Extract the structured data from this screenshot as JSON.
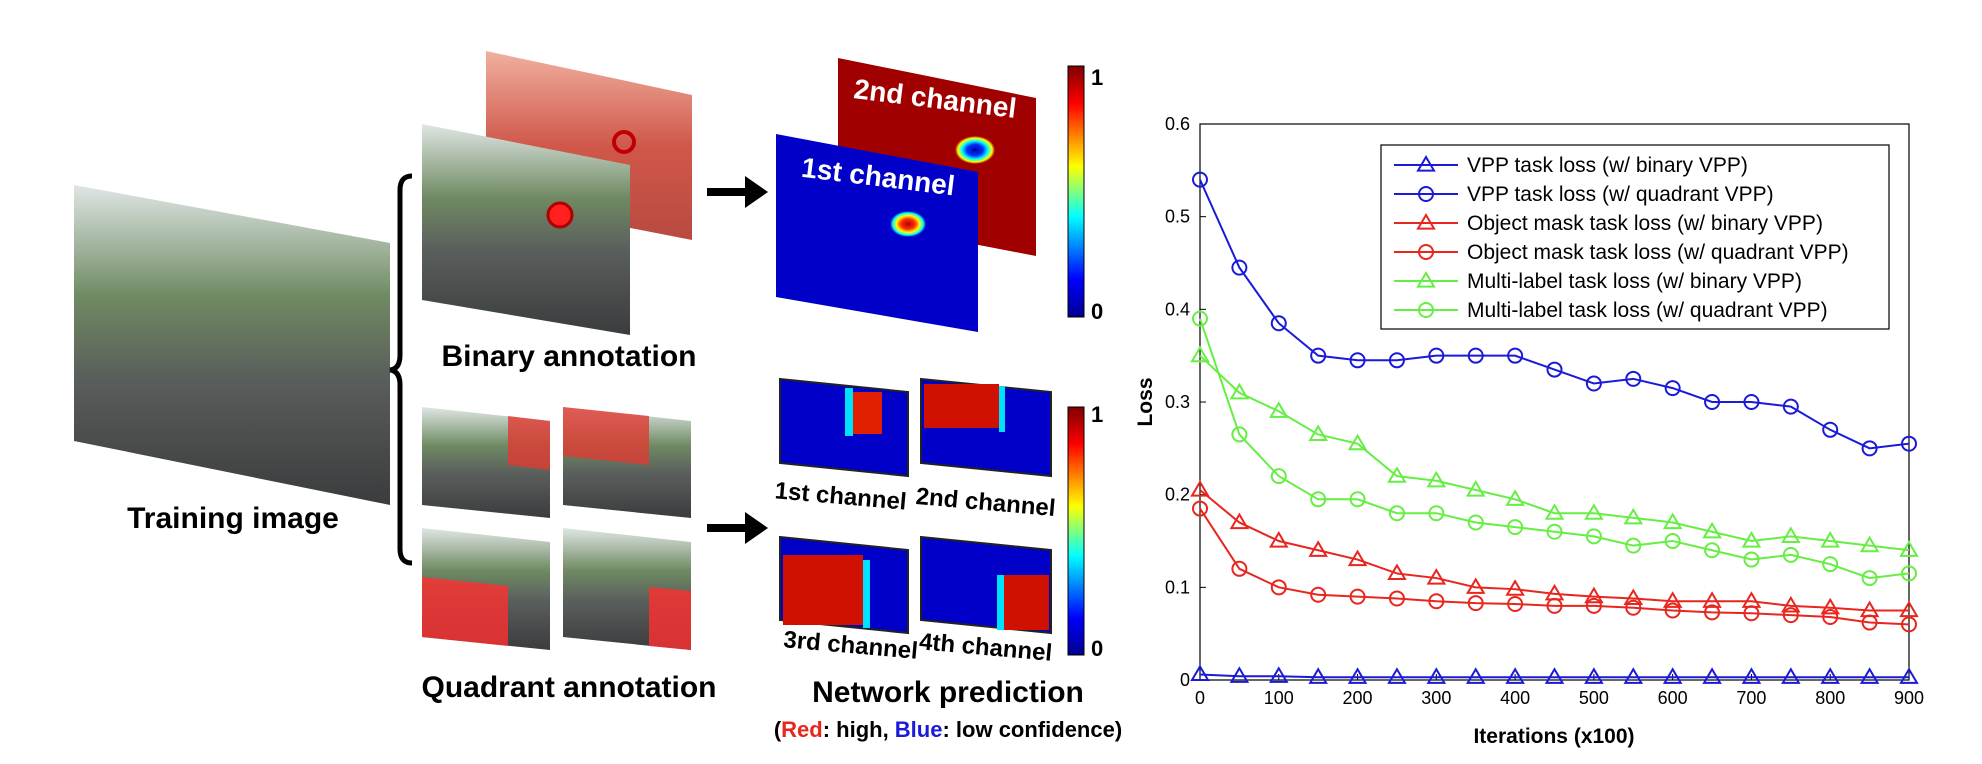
{
  "diagram": {
    "training_label": "Training image",
    "binary_label": "Binary annotation",
    "quadrant_label": "Quadrant annotation",
    "prediction_label": "Network prediction",
    "legend_note": [
      "(",
      "Red",
      ": high, ",
      "Blue",
      ": low confidence)"
    ],
    "binary_channels": [
      "1st channel",
      "2nd channel"
    ],
    "quadrant_channels": [
      "1st channel",
      "2nd channel",
      "3rd channel",
      "4th channel"
    ],
    "colorbar_ticks": [
      0,
      1
    ]
  },
  "chart_data": {
    "type": "line",
    "xlabel": "Iterations (x100)",
    "ylabel": "Loss",
    "x": [
      0,
      50,
      100,
      150,
      200,
      250,
      300,
      350,
      400,
      450,
      500,
      550,
      600,
      650,
      700,
      750,
      800,
      850,
      900
    ],
    "xlim": [
      0,
      900
    ],
    "ylim": [
      0,
      0.6
    ],
    "xticks": [
      0,
      100,
      200,
      300,
      400,
      500,
      600,
      700,
      800,
      900
    ],
    "yticks": [
      0,
      0.1,
      0.2,
      0.3,
      0.4,
      0.5,
      0.6
    ],
    "grid": false,
    "legend": "upper right",
    "series": [
      {
        "name": "VPP task loss (w/ binary VPP)",
        "color": "#1a1ad8",
        "marker": "triangle",
        "values": [
          0.006,
          0.004,
          0.004,
          0.003,
          0.003,
          0.003,
          0.003,
          0.003,
          0.003,
          0.003,
          0.003,
          0.003,
          0.003,
          0.003,
          0.003,
          0.003,
          0.003,
          0.003,
          0.003
        ]
      },
      {
        "name": "VPP task loss (w/ quadrant VPP)",
        "color": "#1a1ad8",
        "marker": "circle",
        "values": [
          0.54,
          0.445,
          0.385,
          0.35,
          0.345,
          0.345,
          0.35,
          0.35,
          0.35,
          0.335,
          0.32,
          0.325,
          0.315,
          0.3,
          0.3,
          0.295,
          0.27,
          0.25,
          0.255
        ]
      },
      {
        "name": "Object mask task loss (w/ binary VPP)",
        "color": "#e8261e",
        "marker": "triangle",
        "values": [
          0.205,
          0.17,
          0.15,
          0.14,
          0.13,
          0.115,
          0.11,
          0.1,
          0.098,
          0.093,
          0.09,
          0.088,
          0.085,
          0.085,
          0.085,
          0.08,
          0.078,
          0.075,
          0.075
        ]
      },
      {
        "name": "Object mask task loss (w/ quadrant VPP)",
        "color": "#e8261e",
        "marker": "circle",
        "values": [
          0.185,
          0.12,
          0.1,
          0.092,
          0.09,
          0.088,
          0.085,
          0.083,
          0.082,
          0.08,
          0.08,
          0.078,
          0.075,
          0.073,
          0.072,
          0.07,
          0.068,
          0.062,
          0.06
        ]
      },
      {
        "name": "Multi-label task loss (w/ binary VPP)",
        "color": "#66ee44",
        "marker": "triangle",
        "values": [
          0.35,
          0.31,
          0.29,
          0.265,
          0.255,
          0.22,
          0.215,
          0.205,
          0.195,
          0.18,
          0.18,
          0.175,
          0.17,
          0.16,
          0.15,
          0.155,
          0.15,
          0.145,
          0.14
        ]
      },
      {
        "name": "Multi-label task loss (w/ quadrant VPP)",
        "color": "#66ee44",
        "marker": "circle",
        "values": [
          0.39,
          0.265,
          0.22,
          0.195,
          0.195,
          0.18,
          0.18,
          0.17,
          0.165,
          0.16,
          0.155,
          0.145,
          0.15,
          0.14,
          0.13,
          0.135,
          0.125,
          0.11,
          0.115
        ]
      }
    ]
  }
}
